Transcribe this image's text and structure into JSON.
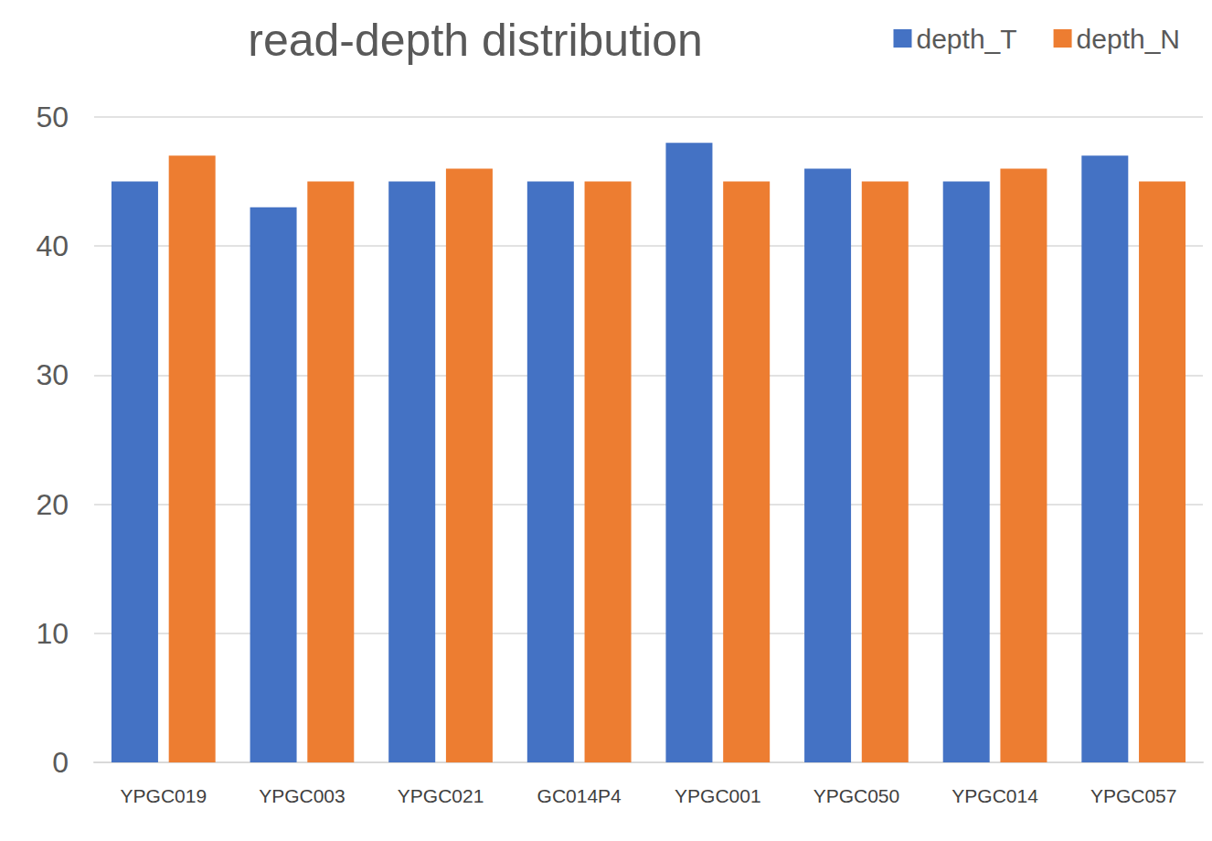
{
  "chart_data": {
    "type": "bar",
    "title": "read-depth distribution",
    "categories": [
      "YPGC019",
      "YPGC003",
      "YPGC021",
      "GC014P4",
      "YPGC001",
      "YPGC050",
      "YPGC014",
      "YPGC057"
    ],
    "series": [
      {
        "name": "depth_T",
        "color": "#4472c4",
        "values": [
          45,
          43,
          45,
          45,
          48,
          46,
          45,
          47
        ]
      },
      {
        "name": "depth_N",
        "color": "#ed7d31",
        "values": [
          47,
          45,
          46,
          45,
          45,
          45,
          46,
          45
        ]
      }
    ],
    "ylim": [
      0,
      50
    ],
    "yticks": [
      0,
      10,
      20,
      30,
      40,
      50
    ],
    "grid": true,
    "legend": "top-right"
  }
}
